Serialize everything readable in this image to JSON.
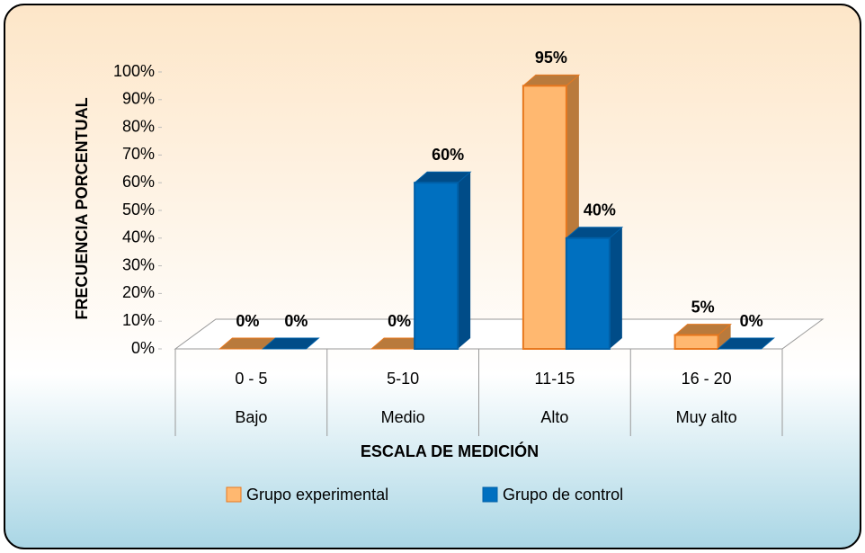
{
  "chart_data": {
    "type": "bar3d",
    "xlabel": "ESCALA DE MEDICIÓN",
    "ylabel": "FRECUENCIA PORCENTUAL",
    "categories": [
      "0 - 5",
      "5-10",
      "11-15",
      "16 - 20"
    ],
    "category_groups": [
      "Bajo",
      "Medio",
      "Alto",
      "Muy alto"
    ],
    "series": [
      {
        "name": "Grupo experimental",
        "color": "#ffb870",
        "edge": "#e8781e",
        "shade": "#b97a3c",
        "values": [
          0,
          0,
          95,
          5
        ],
        "value_labels": [
          "0%",
          "0%",
          "95%",
          "5%"
        ]
      },
      {
        "name": "Grupo de control",
        "color": "#0070c0",
        "edge": "#0060a8",
        "shade": "#004c88",
        "values": [
          0,
          60,
          40,
          0
        ],
        "value_labels": [
          "0%",
          "60%",
          "40%",
          "0%"
        ]
      }
    ],
    "ylim": [
      0,
      100
    ],
    "yticks": [
      {
        "value": 0,
        "label": "0%"
      },
      {
        "value": 10,
        "label": "10%"
      },
      {
        "value": 20,
        "label": "20%"
      },
      {
        "value": 30,
        "label": "30%"
      },
      {
        "value": 40,
        "label": "40%"
      },
      {
        "value": 50,
        "label": "50%"
      },
      {
        "value": 60,
        "label": "60%"
      },
      {
        "value": 70,
        "label": "70%"
      },
      {
        "value": 80,
        "label": "80%"
      },
      {
        "value": 90,
        "label": "90%"
      },
      {
        "value": 100,
        "label": "100%"
      }
    ],
    "grid": false,
    "legend": "bottom"
  }
}
